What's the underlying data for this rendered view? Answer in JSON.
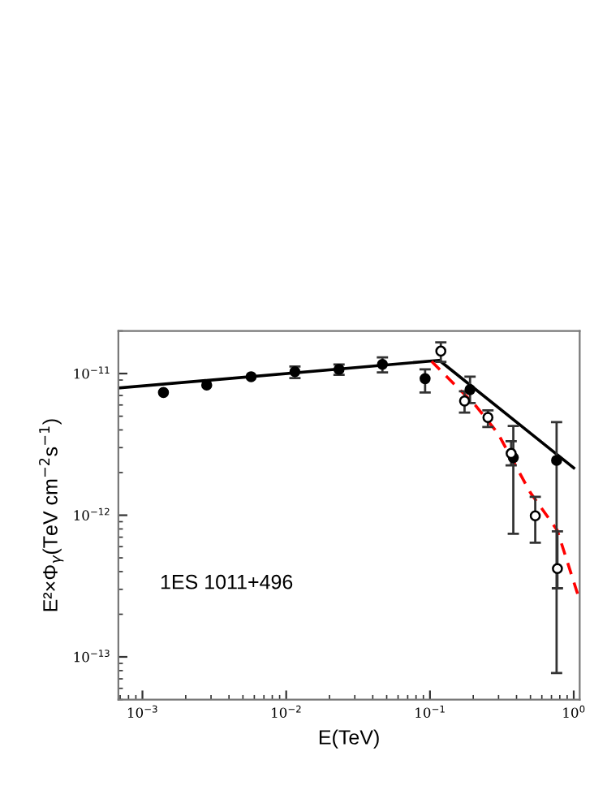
{
  "chart_data": {
    "type": "scatter",
    "xlabel": "E(TeV)",
    "ylabel": "E²×Φ$_{γ}$(TeV cm$^{−2}$s$^{−1}$)",
    "log": "xy",
    "grid": false,
    "legend": false,
    "xlim": [
      0.00068,
      1.1
    ],
    "ylim": [
      5e-14,
      2e-11
    ],
    "xticks": [
      {
        "value": 0.001,
        "label": "10$^{−3}$"
      },
      {
        "value": 0.01,
        "label": "10$^{−2}$"
      },
      {
        "value": 0.1,
        "label": "10$^{−1}$"
      },
      {
        "value": 1,
        "label": "10$^{0}$"
      }
    ],
    "yticks": [
      {
        "value": 1e-13,
        "label": "10$^{−13}$"
      },
      {
        "value": 1e-12,
        "label": "10$^{−12}$"
      },
      {
        "value": 1e-11,
        "label": "10$^{−11}$"
      }
    ],
    "annotations": [
      "1ES 1011+496"
    ],
    "series": [
      {
        "marker": "circle",
        "color": "#000000",
        "x": [
          0.0014,
          0.0028,
          0.0057,
          0.0115,
          0.0233,
          0.0467,
          0.0925,
          0.19,
          0.38,
          0.76
        ],
        "values": [
          7.35e-12,
          8.3e-12,
          9.5e-12,
          1.03e-11,
          1.07e-11,
          1.16e-11,
          9.2e-12,
          7.7e-12,
          2.55e-12,
          2.44e-12
        ],
        "errors": [
          null,
          null,
          null,
          [
            9.3e-12,
            1.12e-11
          ],
          [
            9.8e-12,
            1.16e-11
          ],
          [
            1.02e-11,
            1.3e-11
          ],
          [
            7.35e-12,
            1.07e-11
          ],
          [
            6.2e-12,
            9.5e-12
          ],
          [
            7.4e-13,
            4.27e-12
          ],
          [
            7.7e-14,
            4.54e-12
          ]
        ]
      },
      {
        "marker": "circle",
        "color": "#ffffff",
        "x": [
          0.119,
          0.174,
          0.253,
          0.367,
          0.54,
          0.77
        ],
        "values": [
          1.44e-11,
          6.4e-12,
          4.9e-12,
          2.73e-12,
          9.9e-13,
          4.2e-13
        ],
        "errors": [
          [
            1.21e-11,
            1.66e-11
          ],
          [
            5.3e-12,
            7.5e-12
          ],
          [
            4.2e-12,
            5.5e-12
          ],
          [
            2.25e-12,
            3.33e-12
          ],
          [
            6.4e-13,
            1.35e-12
          ],
          [
            3.05e-13,
            7.7e-13
          ]
        ]
      },
      {
        "type": "line",
        "marker": "none",
        "line_style": "solid",
        "color": "#000000",
        "x": [
          0.00068,
          0.116,
          1.0
        ],
        "values": [
          7.9e-12,
          1.24e-11,
          2.16e-12
        ]
      },
      {
        "type": "line",
        "marker": "none",
        "line_style": "dashed",
        "color": "#ff0000",
        "x": [
          0.1026,
          0.209,
          0.296,
          0.498,
          0.767,
          1.07
        ],
        "values": [
          1.22e-11,
          5.9e-12,
          3.8e-12,
          1.45e-12,
          7.85e-13,
          2.74e-13
        ]
      }
    ]
  }
}
